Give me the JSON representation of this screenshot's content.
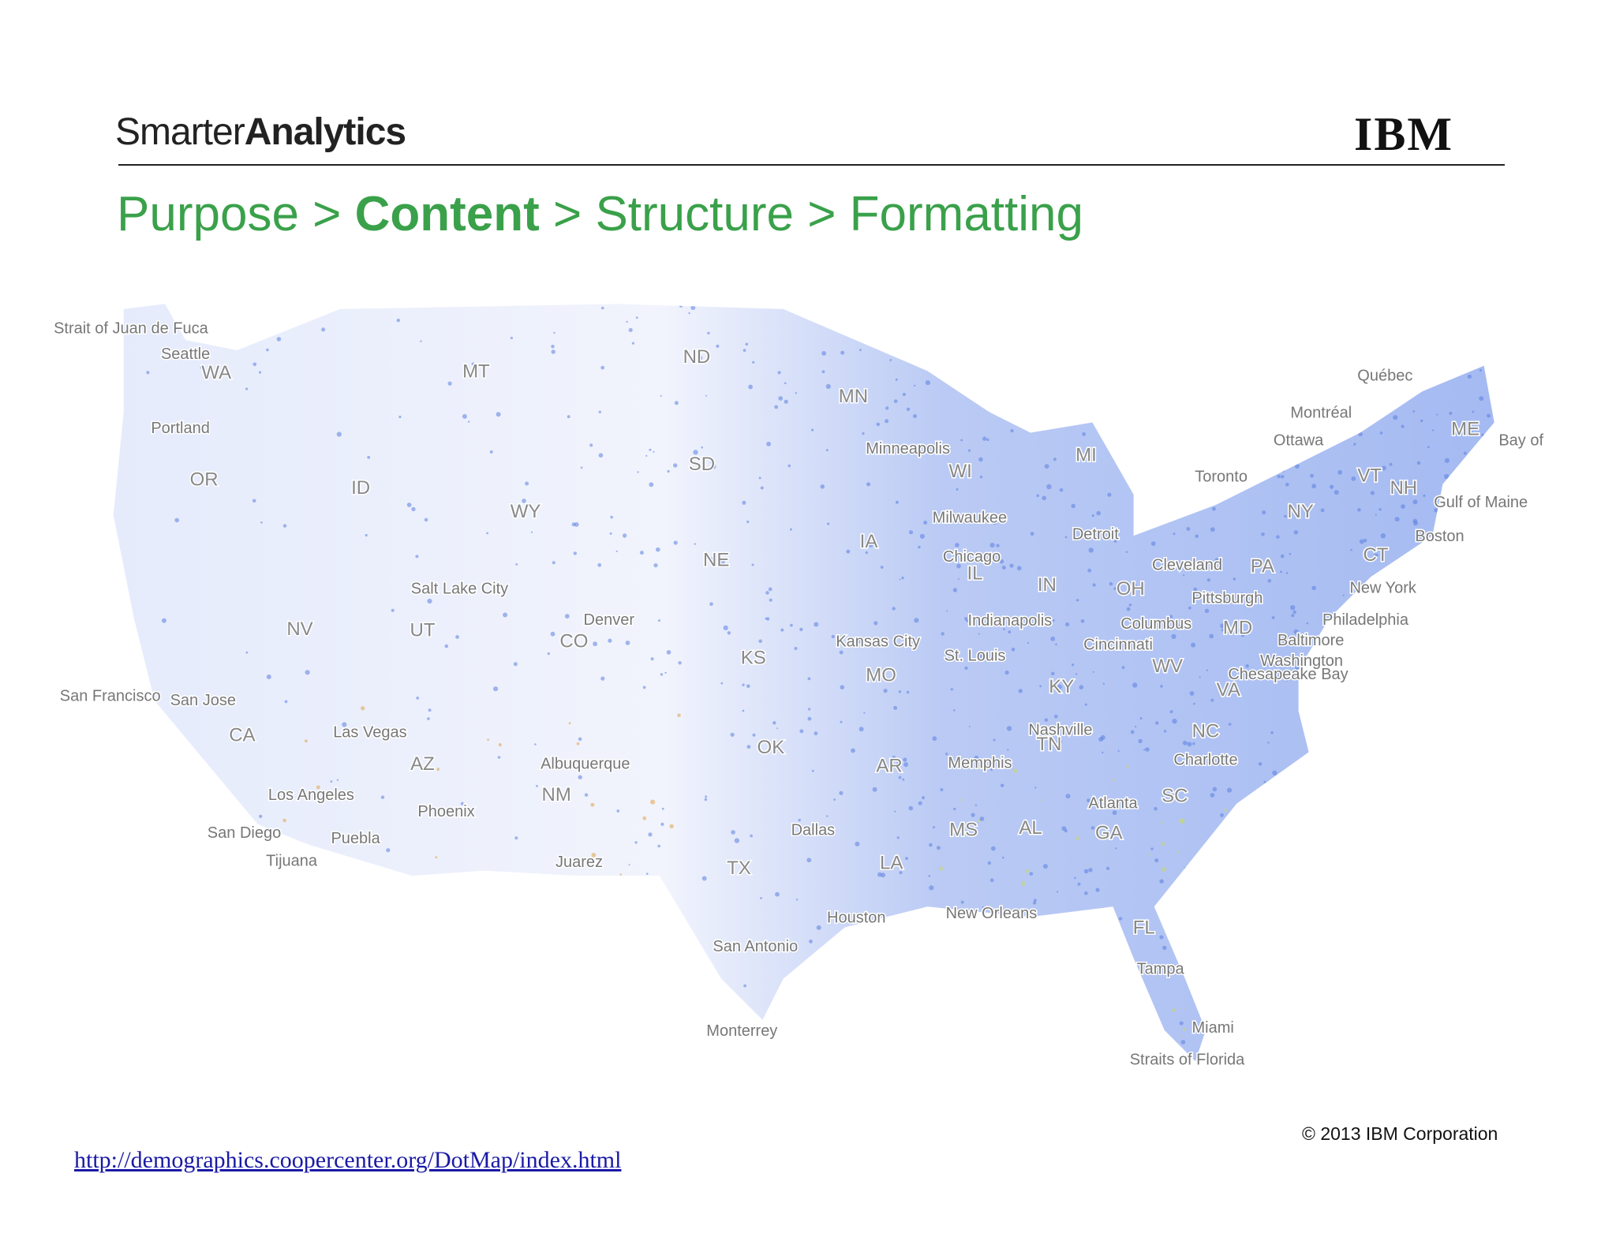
{
  "header": {
    "brand_light": "Smarter",
    "brand_bold": "Analytics",
    "logo": "IBM"
  },
  "breadcrumb": {
    "items": [
      "Purpose",
      "Content",
      "Structure",
      "Formatting"
    ],
    "separator": ">",
    "current": "Content"
  },
  "map": {
    "labels": [
      "WA",
      "MT",
      "ND",
      "MN",
      "OR",
      "ID",
      "WY",
      "SD",
      "WI",
      "MI",
      "NE",
      "IA",
      "IL",
      "IN",
      "OH",
      "PA",
      "NY",
      "VT",
      "NH",
      "ME",
      "CT",
      "NV",
      "UT",
      "CO",
      "KS",
      "MO",
      "KY",
      "WV",
      "VA",
      "MD",
      "NC",
      "TN",
      "CA",
      "AZ",
      "NM",
      "OK",
      "AR",
      "SC",
      "MS",
      "AL",
      "GA",
      "TX",
      "LA",
      "FL",
      "Seattle",
      "Portland",
      "San Francisco",
      "San Jose",
      "Los Angeles",
      "San Diego",
      "Tijuana",
      "Puebla",
      "Las Vegas",
      "Phoenix",
      "Salt Lake City",
      "Denver",
      "Albuquerque",
      "Juarez",
      "Dallas",
      "Houston",
      "San Antonio",
      "Monterrey",
      "Kansas City",
      "Minneapolis",
      "Chicago",
      "Milwaukee",
      "St. Louis",
      "Memphis",
      "Nashville",
      "Atlanta",
      "New Orleans",
      "Indianapolis",
      "Detroit",
      "Cleveland",
      "Columbus",
      "Cincinnati",
      "Pittsburgh",
      "Charlotte",
      "Washington",
      "Baltimore",
      "Philadelphia",
      "New York",
      "Boston",
      "Tampa",
      "Miami",
      "Toronto",
      "Montréal",
      "Ottawa",
      "Québec",
      "Strait of Juan de Fuca",
      "Gulf of Maine",
      "Bay of",
      "Chesapeake Bay",
      "Straits of Florida"
    ]
  },
  "footer": {
    "copyright": "© 2013 IBM Corporation",
    "link": "http://demographics.coopercenter.org/DotMap/index.html"
  }
}
